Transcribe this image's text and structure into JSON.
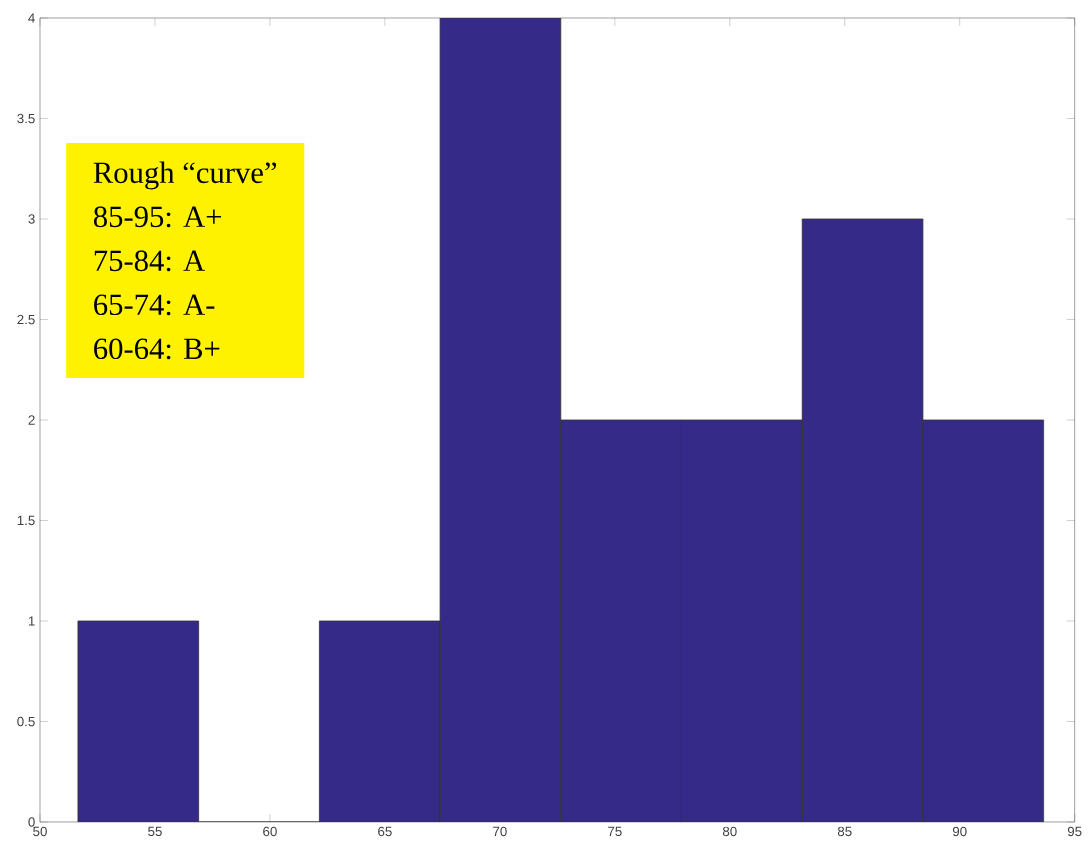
{
  "chart_data": {
    "type": "histogram",
    "bins": [
      51.65,
      56.9,
      62.15,
      67.4,
      72.65,
      77.9,
      83.15,
      88.4,
      93.65
    ],
    "values": [
      1,
      0,
      1,
      4,
      2,
      2,
      3,
      2
    ],
    "color": "#352a87",
    "xlim": [
      50,
      95
    ],
    "xticks": [
      50,
      55,
      60,
      65,
      70,
      75,
      80,
      85,
      90,
      95
    ],
    "ylim": [
      0,
      4
    ],
    "yticks": [
      0,
      0.5,
      1,
      1.5,
      2,
      2.5,
      3,
      3.5,
      4
    ],
    "grid": false,
    "annotations": [
      "Rough “curve”",
      "85-95: A+",
      "75-84: A",
      "65-74: A-",
      "60-64: B+"
    ]
  }
}
